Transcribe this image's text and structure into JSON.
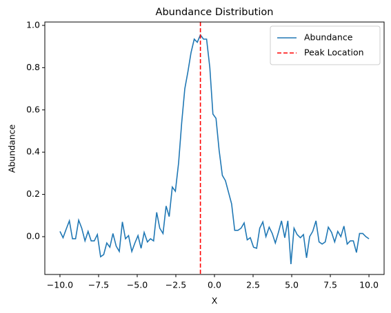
{
  "chart_data": {
    "type": "line",
    "title": "Abundance Distribution",
    "xlabel": "X",
    "ylabel": "Abundance",
    "x": [
      -10.0,
      -9.8,
      -9.6,
      -9.39,
      -9.19,
      -8.99,
      -8.79,
      -8.59,
      -8.38,
      -8.18,
      -7.98,
      -7.78,
      -7.58,
      -7.37,
      -7.17,
      -6.97,
      -6.77,
      -6.57,
      -6.36,
      -6.16,
      -5.96,
      -5.76,
      -5.56,
      -5.35,
      -5.15,
      -4.95,
      -4.75,
      -4.55,
      -4.34,
      -4.14,
      -3.94,
      -3.74,
      -3.54,
      -3.33,
      -3.13,
      -2.93,
      -2.73,
      -2.53,
      -2.32,
      -2.12,
      -1.92,
      -1.72,
      -1.52,
      -1.31,
      -1.11,
      -0.91,
      -0.71,
      -0.51,
      -0.3,
      -0.1,
      0.1,
      0.3,
      0.51,
      0.71,
      0.91,
      1.11,
      1.31,
      1.52,
      1.72,
      1.92,
      2.12,
      2.32,
      2.53,
      2.73,
      2.93,
      3.13,
      3.33,
      3.54,
      3.74,
      3.94,
      4.14,
      4.34,
      4.55,
      4.75,
      4.95,
      5.15,
      5.35,
      5.56,
      5.76,
      5.96,
      6.16,
      6.36,
      6.57,
      6.77,
      6.97,
      7.17,
      7.37,
      7.58,
      7.78,
      7.98,
      8.18,
      8.38,
      8.59,
      8.79,
      8.99,
      9.19,
      9.39,
      9.6,
      9.8,
      10.0
    ],
    "series": [
      {
        "name": "Abundance",
        "color": "#1f77b4",
        "values": [
          0.025,
          -0.005,
          0.035,
          0.075,
          -0.01,
          -0.01,
          0.078,
          0.04,
          -0.02,
          0.025,
          -0.02,
          -0.02,
          0.01,
          -0.095,
          -0.085,
          -0.03,
          -0.05,
          0.015,
          -0.045,
          -0.07,
          0.07,
          -0.01,
          0.005,
          -0.07,
          -0.03,
          0.005,
          -0.055,
          0.02,
          -0.025,
          -0.01,
          -0.02,
          0.115,
          0.04,
          0.015,
          0.145,
          0.095,
          0.235,
          0.215,
          0.35,
          0.54,
          0.7,
          0.78,
          0.87,
          0.935,
          0.92,
          0.955,
          0.935,
          0.935,
          0.8,
          0.58,
          0.56,
          0.41,
          0.29,
          0.265,
          0.21,
          0.155,
          0.03,
          0.03,
          0.04,
          0.065,
          -0.015,
          -0.005,
          -0.05,
          -0.055,
          0.04,
          0.07,
          0.0,
          0.045,
          0.015,
          -0.03,
          0.02,
          0.075,
          -0.005,
          0.075,
          -0.13,
          0.04,
          0.01,
          -0.005,
          0.01,
          -0.1,
          0.0,
          0.025,
          0.075,
          -0.025,
          -0.035,
          -0.025,
          0.045,
          0.02,
          -0.025,
          0.025,
          0.0,
          0.05,
          -0.035,
          -0.02,
          -0.02,
          -0.075,
          0.015,
          0.015,
          0.0,
          -0.01
        ]
      }
    ],
    "vline": {
      "name": "Peak Location",
      "x": -0.91,
      "color": "#ff0000",
      "dashed": true
    },
    "xlim": [
      -10.98,
      10.98
    ],
    "ylim": [
      -0.179,
      1.016
    ],
    "xticks": [
      {
        "value": -10,
        "label": "−10.0"
      },
      {
        "value": -7.5,
        "label": "−7.5"
      },
      {
        "value": -5,
        "label": "−5.0"
      },
      {
        "value": -2.5,
        "label": "−2.5"
      },
      {
        "value": 0,
        "label": "0.0"
      },
      {
        "value": 2.5,
        "label": "2.5"
      },
      {
        "value": 5,
        "label": "5.0"
      },
      {
        "value": 7.5,
        "label": "7.5"
      },
      {
        "value": 10,
        "label": "10.0"
      }
    ],
    "yticks": [
      {
        "value": 0,
        "label": "0.0"
      },
      {
        "value": 0.2,
        "label": "0.2"
      },
      {
        "value": 0.4,
        "label": "0.4"
      },
      {
        "value": 0.6,
        "label": "0.6"
      },
      {
        "value": 0.8,
        "label": "0.8"
      },
      {
        "value": 1.0,
        "label": "1.0"
      }
    ],
    "grid": false,
    "legend": "upper right"
  }
}
